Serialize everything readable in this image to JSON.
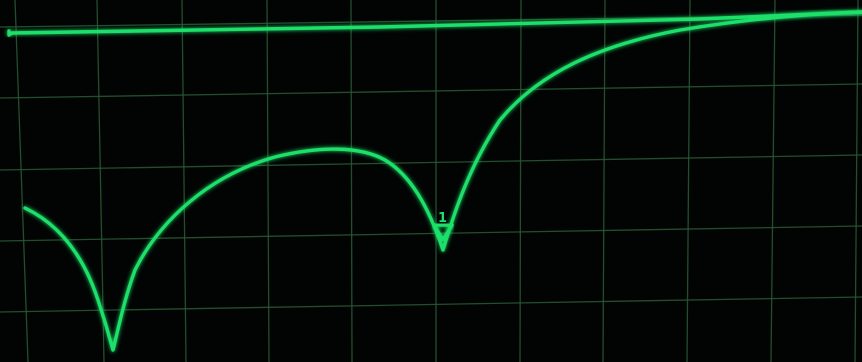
{
  "screen": {
    "phosphor_color": "#1fe06a",
    "grid_color": "#2a5a36",
    "background_color": "#020403"
  },
  "marker": {
    "label": "1"
  }
}
